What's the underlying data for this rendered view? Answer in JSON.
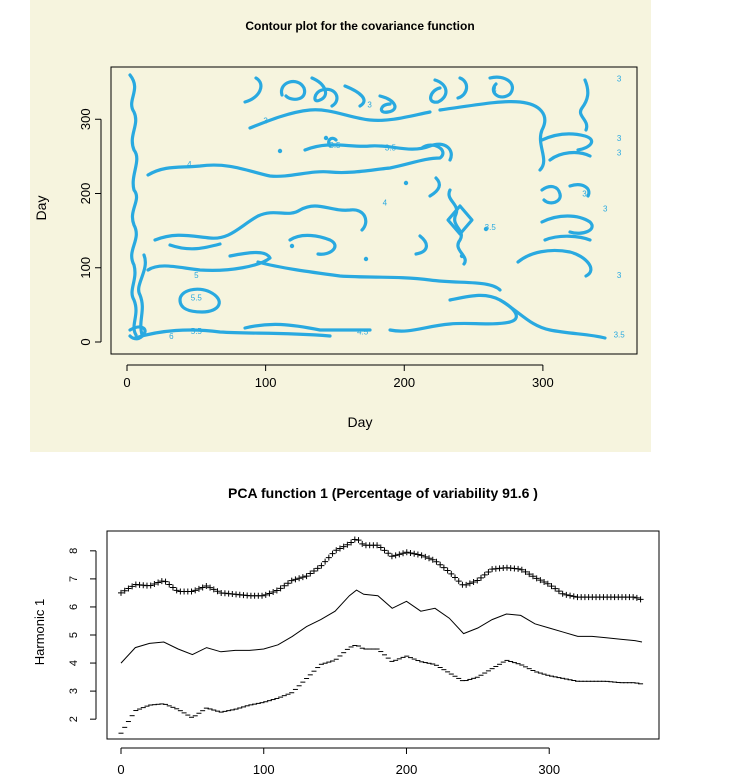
{
  "chart_data": [
    {
      "type": "contour",
      "title": "Contour plot for the covariance function",
      "xlabel": "Day",
      "ylabel": "Day",
      "xlim": [
        0,
        365
      ],
      "ylim": [
        0,
        365
      ],
      "xticks": [
        0,
        100,
        200,
        300
      ],
      "yticks": [
        0,
        100,
        200,
        300
      ],
      "line_color": "#29a9e0",
      "contour_labels": [
        {
          "text": "3",
          "x": 100,
          "y": 298
        },
        {
          "text": "3",
          "x": 175,
          "y": 320
        },
        {
          "text": "3",
          "x": 265,
          "y": 340
        },
        {
          "text": "3",
          "x": 355,
          "y": 355
        },
        {
          "text": "3",
          "x": 355,
          "y": 275
        },
        {
          "text": "3",
          "x": 355,
          "y": 255
        },
        {
          "text": "3",
          "x": 345,
          "y": 180
        },
        {
          "text": "3",
          "x": 355,
          "y": 90
        },
        {
          "text": "3",
          "x": 330,
          "y": 200
        },
        {
          "text": "3.5",
          "x": 150,
          "y": 265
        },
        {
          "text": "3.5",
          "x": 190,
          "y": 262
        },
        {
          "text": "3.5",
          "x": 262,
          "y": 155
        },
        {
          "text": "3.5",
          "x": 355,
          "y": 10
        },
        {
          "text": "4",
          "x": 45,
          "y": 240
        },
        {
          "text": "4",
          "x": 186,
          "y": 188
        },
        {
          "text": "4.5",
          "x": 170,
          "y": 14
        },
        {
          "text": "5",
          "x": 50,
          "y": 90
        },
        {
          "text": "5.5",
          "x": 50,
          "y": 60
        },
        {
          "text": "5.5",
          "x": 50,
          "y": 15
        },
        {
          "text": "6",
          "x": 32,
          "y": 8
        }
      ]
    },
    {
      "type": "line",
      "title": "PCA function 1 (Percentage of variability 91.6 )",
      "xlabel": "",
      "ylabel": "Harmonic 1",
      "xlim": [
        0,
        365
      ],
      "ylim": [
        1.4,
        8.6
      ],
      "xticks": [
        0,
        100,
        200,
        300
      ],
      "yticks": [
        2,
        3,
        4,
        5,
        6,
        7,
        8
      ],
      "x": [
        0,
        10,
        20,
        30,
        40,
        50,
        60,
        70,
        80,
        90,
        100,
        110,
        120,
        130,
        140,
        150,
        160,
        165,
        170,
        180,
        190,
        200,
        210,
        220,
        230,
        240,
        250,
        260,
        270,
        280,
        290,
        300,
        310,
        320,
        330,
        340,
        350,
        360,
        365
      ],
      "series": [
        {
          "style": "solid",
          "values": [
            4.0,
            4.55,
            4.7,
            4.75,
            4.5,
            4.3,
            4.55,
            4.4,
            4.45,
            4.45,
            4.5,
            4.65,
            4.95,
            5.3,
            5.55,
            5.85,
            6.4,
            6.6,
            6.45,
            6.4,
            5.95,
            6.2,
            5.85,
            5.95,
            5.6,
            5.05,
            5.25,
            5.55,
            5.75,
            5.7,
            5.4,
            5.25,
            5.1,
            4.95,
            4.95,
            4.9,
            4.85,
            4.8,
            4.75
          ]
        },
        {
          "style": "plus",
          "values": [
            6.5,
            6.8,
            6.75,
            6.95,
            6.55,
            6.55,
            6.75,
            6.5,
            6.45,
            6.4,
            6.4,
            6.6,
            6.95,
            7.1,
            7.45,
            8.0,
            8.25,
            8.45,
            8.2,
            8.2,
            7.8,
            7.95,
            7.85,
            7.65,
            7.25,
            6.75,
            6.95,
            7.35,
            7.4,
            7.35,
            7.05,
            6.8,
            6.45,
            6.35,
            6.35,
            6.35,
            6.35,
            6.35,
            6.25
          ]
        },
        {
          "style": "dash",
          "values": [
            1.5,
            2.3,
            2.5,
            2.55,
            2.35,
            2.05,
            2.4,
            2.25,
            2.35,
            2.5,
            2.6,
            2.75,
            2.95,
            3.45,
            3.95,
            4.1,
            4.55,
            4.65,
            4.5,
            4.5,
            4.05,
            4.25,
            4.05,
            3.95,
            3.65,
            3.35,
            3.5,
            3.8,
            4.1,
            3.95,
            3.7,
            3.55,
            3.45,
            3.35,
            3.35,
            3.35,
            3.3,
            3.3,
            3.25
          ]
        }
      ]
    }
  ]
}
